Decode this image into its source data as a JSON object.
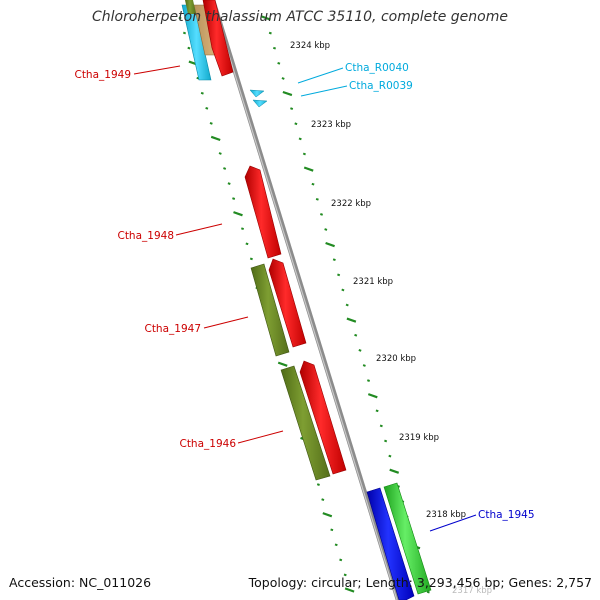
{
  "title": "Chloroherpeton thalassium ATCC 35110, complete genome",
  "footer": {
    "accession": "Accession: NC_011026",
    "summary": "Topology: circular; Length: 3,293,456 bp; Genes: 2,757"
  },
  "colors": {
    "red_gene": "#ff0000",
    "olive_gene": "#6b8e23",
    "green_gene": "#33cc33",
    "blue_gene": "#0000ee",
    "rna_gene": "#33ccee",
    "backbone": "#888888",
    "tick": "#228b22",
    "label_red": "#cc0000",
    "label_blue": "#0000cc",
    "label_cyan": "#00aadd"
  },
  "scale": {
    "ticks": [
      "2324 kbp",
      "2323 kbp",
      "2322 kbp",
      "2321 kbp",
      "2320 kbp",
      "2319 kbp",
      "2318 kbp",
      "2317 kbp"
    ]
  },
  "genes": [
    {
      "name": "Ctha_1949",
      "color": "red"
    },
    {
      "name": "Ctha_1948",
      "color": "red"
    },
    {
      "name": "Ctha_1947",
      "color": "red"
    },
    {
      "name": "Ctha_1946",
      "color": "red"
    },
    {
      "name": "Ctha_1945",
      "color": "blue"
    },
    {
      "name": "Ctha_R0040",
      "color": "cyan"
    },
    {
      "name": "Ctha_R0039",
      "color": "cyan"
    }
  ]
}
